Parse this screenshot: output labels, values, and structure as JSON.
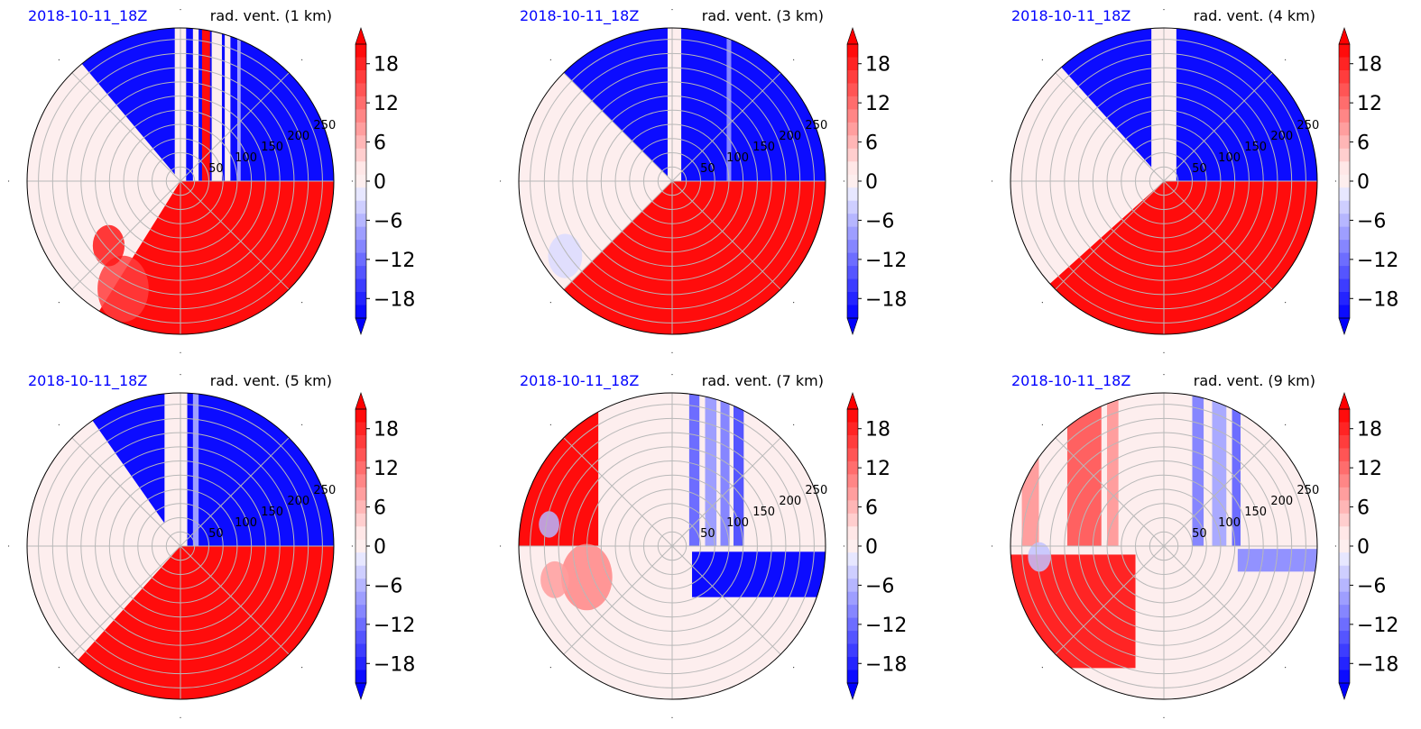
{
  "date_label_color": "#0000ff",
  "positive_color": "#ff0000",
  "negative_color": "#0000ff",
  "chart_data": [
    {
      "type": "polar-contour",
      "date_label": "2018-10-11_18Z",
      "title": "rad. vent. (1 km)",
      "radial_ticks": [
        "50",
        "100",
        "150",
        "200",
        "250"
      ],
      "colorbar": {
        "ticks": [
          "18",
          "12",
          "6",
          "0",
          "−6",
          "−12",
          "−18"
        ],
        "range": [
          -21,
          21
        ],
        "extend": "both"
      },
      "pattern": {
        "neutral_sector_deg": [
          135,
          235
        ],
        "fields": [
          {
            "from_deg": 238,
            "to_deg": 360,
            "value": 20
          },
          {
            "from_deg": 0,
            "to_deg": 130,
            "value": -20
          }
        ],
        "stripes": [
          {
            "x_km": -10,
            "width_km": 20,
            "value": 0
          },
          {
            "x_km": 22,
            "width_km": 10,
            "value": 0
          },
          {
            "x_km": 38,
            "width_km": 14,
            "value": 20
          },
          {
            "x_km": 55,
            "width_km": 18,
            "value": 0
          },
          {
            "x_km": 78,
            "width_km": 10,
            "value": 0
          },
          {
            "x_km": 100,
            "width_km": 6,
            "value": -8
          }
        ],
        "patches": [
          {
            "r_km": 215,
            "angle_deg": 242,
            "size_km": 45,
            "value": 16
          },
          {
            "r_km": 170,
            "angle_deg": 222,
            "size_km": 28,
            "value": 19
          }
        ]
      }
    },
    {
      "type": "polar-contour",
      "date_label": "2018-10-11_18Z",
      "title": "rad. vent. (3 km)",
      "radial_ticks": [
        "50",
        "100",
        "150",
        "200",
        "250"
      ],
      "colorbar": {
        "ticks": [
          "18",
          "12",
          "6",
          "0",
          "−6",
          "−12",
          "−18"
        ],
        "range": [
          -21,
          21
        ],
        "extend": "both"
      },
      "pattern": {
        "neutral_sector_deg": [
          135,
          225
        ],
        "fields": [
          {
            "from_deg": 225,
            "to_deg": 360,
            "value": 20
          },
          {
            "from_deg": 0,
            "to_deg": 135,
            "value": -20
          }
        ],
        "stripes": [
          {
            "x_km": -8,
            "width_km": 24,
            "value": 0
          },
          {
            "x_km": 96,
            "width_km": 8,
            "value": -10
          }
        ],
        "patches": [
          {
            "r_km": 230,
            "angle_deg": 215,
            "size_km": 30,
            "value": -3
          }
        ]
      }
    },
    {
      "type": "polar-contour",
      "date_label": "2018-10-11_18Z",
      "title": "rad. vent. (4 km)",
      "radial_ticks": [
        "50",
        "100",
        "150",
        "200",
        "250"
      ],
      "colorbar": {
        "ticks": [
          "18",
          "12",
          "6",
          "0",
          "−6",
          "−12",
          "−18"
        ],
        "range": [
          -21,
          21
        ],
        "extend": "both"
      },
      "pattern": {
        "neutral_sector_deg": [
          132,
          222
        ],
        "fields": [
          {
            "from_deg": 222,
            "to_deg": 360,
            "value": 20
          },
          {
            "from_deg": 0,
            "to_deg": 132,
            "value": -20
          }
        ],
        "stripes": [
          {
            "x_km": -22,
            "width_km": 44,
            "value": 0
          }
        ],
        "patches": []
      }
    },
    {
      "type": "polar-contour",
      "date_label": "2018-10-11_18Z",
      "title": "rad. vent. (5 km)",
      "radial_ticks": [
        "50",
        "100",
        "150",
        "200",
        "250"
      ],
      "colorbar": {
        "ticks": [
          "18",
          "12",
          "6",
          "0",
          "−6",
          "−12",
          "−18"
        ],
        "range": [
          -21,
          21
        ],
        "extend": "both"
      },
      "pattern": {
        "neutral_sector_deg": [
          125,
          228
        ],
        "fields": [
          {
            "from_deg": 228,
            "to_deg": 360,
            "value": 20
          },
          {
            "from_deg": 0,
            "to_deg": 125,
            "value": -20
          }
        ],
        "stripes": [
          {
            "x_km": -28,
            "width_km": 40,
            "value": 0
          },
          {
            "x_km": 22,
            "width_km": 10,
            "value": -8
          }
        ],
        "patches": []
      }
    },
    {
      "type": "polar-contour",
      "date_label": "2018-10-11_18Z",
      "title": "rad. vent. (7 km)",
      "radial_ticks": [
        "50",
        "100",
        "150",
        "200",
        "250"
      ],
      "colorbar": {
        "ticks": [
          "18",
          "12",
          "6",
          "0",
          "−6",
          "−12",
          "−18"
        ],
        "range": [
          -21,
          21
        ],
        "extend": "both"
      },
      "pattern": {
        "neutral_sector_deg": [
          0,
          360
        ],
        "fields": [],
        "stripes": [
          {
            "x_km": -270,
            "width_km": 140,
            "value": 20
          },
          {
            "x_km": 30,
            "width_km": 18,
            "value": -12
          },
          {
            "x_km": 58,
            "width_km": 20,
            "value": -8
          },
          {
            "x_km": 85,
            "width_km": 16,
            "value": -10
          },
          {
            "x_km": 108,
            "width_km": 18,
            "value": -14
          },
          {
            "x_km": 130,
            "width_km": 140,
            "value": -1
          }
        ],
        "bands": [
          {
            "x_km": 35,
            "y_km": -10,
            "width_km": 240,
            "height_km": 80,
            "value": -20
          }
        ],
        "patches": [
          {
            "r_km": 160,
            "angle_deg": 200,
            "size_km": 45,
            "value": 10
          },
          {
            "r_km": 215,
            "angle_deg": 196,
            "size_km": 25,
            "value": 8
          },
          {
            "r_km": 220,
            "angle_deg": 170,
            "size_km": 18,
            "value": -6
          }
        ]
      }
    },
    {
      "type": "polar-contour",
      "date_label": "2018-10-11_18Z",
      "title": "rad. vent. (9 km)",
      "radial_ticks": [
        "50",
        "100",
        "150",
        "200",
        "250"
      ],
      "colorbar": {
        "ticks": [
          "18",
          "12",
          "6",
          "0",
          "−6",
          "−12",
          "−18"
        ],
        "range": [
          -21,
          21
        ],
        "extend": "both"
      },
      "pattern": {
        "neutral_sector_deg": [
          0,
          360
        ],
        "fields": [],
        "stripes": [
          {
            "x_km": -250,
            "width_km": 30,
            "value": 8
          },
          {
            "x_km": -170,
            "width_km": 60,
            "value": 13
          },
          {
            "x_km": -100,
            "width_km": 20,
            "value": 8
          },
          {
            "x_km": 50,
            "width_km": 20,
            "value": -10
          },
          {
            "x_km": 85,
            "width_km": 25,
            "value": -7
          },
          {
            "x_km": 120,
            "width_km": 15,
            "value": -12
          },
          {
            "x_km": 140,
            "width_km": 140,
            "value": -1
          }
        ],
        "bands": [
          {
            "x_km": -270,
            "y_km": -15,
            "width_km": 220,
            "height_km": 200,
            "value": 18
          },
          {
            "x_km": 130,
            "y_km": -5,
            "width_km": 140,
            "height_km": 40,
            "value": -9
          }
        ],
        "patches": [
          {
            "r_km": 220,
            "angle_deg": 185,
            "size_km": 20,
            "value": -5
          }
        ]
      }
    }
  ]
}
